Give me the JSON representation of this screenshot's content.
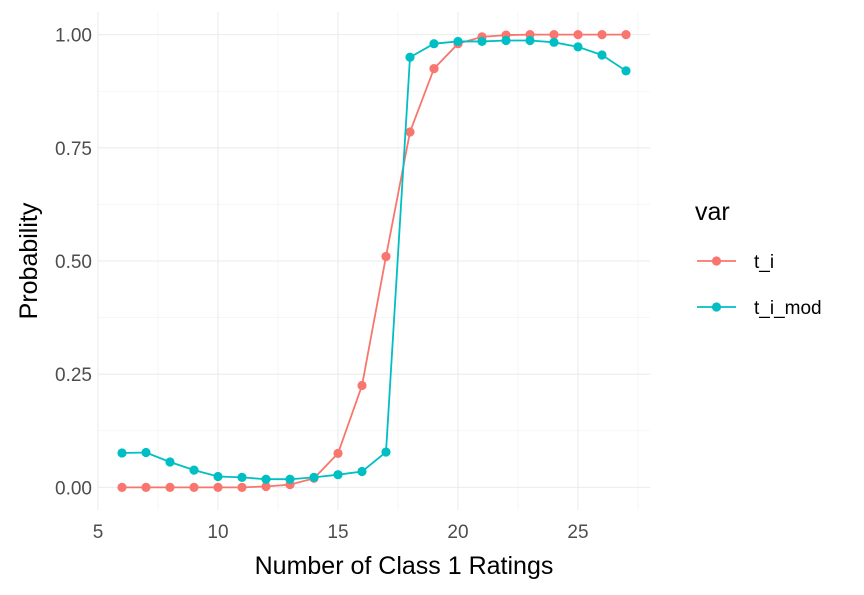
{
  "chart_data": {
    "type": "line",
    "title": "",
    "xlabel": "Number of Class 1 Ratings",
    "ylabel": "Probability",
    "xlim": [
      5,
      28
    ],
    "ylim": [
      -0.05,
      1.05
    ],
    "x_ticks": [
      5,
      10,
      15,
      20,
      25
    ],
    "x_tick_labels": [
      "5",
      "10",
      "15",
      "20",
      "25"
    ],
    "y_ticks": [
      0,
      0.25,
      0.5,
      0.75,
      1
    ],
    "y_tick_labels": [
      "0.00",
      "0.25",
      "0.50",
      "0.75",
      "1.00"
    ],
    "grid": true,
    "legend": {
      "title": "var",
      "position": "right"
    },
    "x": [
      6,
      7,
      8,
      9,
      10,
      11,
      12,
      13,
      14,
      15,
      16,
      17,
      18,
      19,
      20,
      21,
      22,
      23,
      24,
      25,
      26,
      27
    ],
    "series": [
      {
        "name": "t_i",
        "color": "#F8766D",
        "values": [
          0.0,
          0.0,
          0.0,
          0.0,
          0.0,
          0.0,
          0.002,
          0.006,
          0.02,
          0.075,
          0.225,
          0.51,
          0.785,
          0.925,
          0.98,
          0.995,
          0.999,
          1.0,
          1.0,
          1.0,
          1.0,
          1.0
        ]
      },
      {
        "name": "t_i_mod",
        "color": "#00BFC4",
        "values": [
          0.076,
          0.077,
          0.056,
          0.038,
          0.024,
          0.022,
          0.018,
          0.018,
          0.022,
          0.028,
          0.035,
          0.078,
          0.95,
          0.98,
          0.985,
          0.985,
          0.987,
          0.987,
          0.983,
          0.973,
          0.955,
          0.92
        ]
      }
    ]
  }
}
